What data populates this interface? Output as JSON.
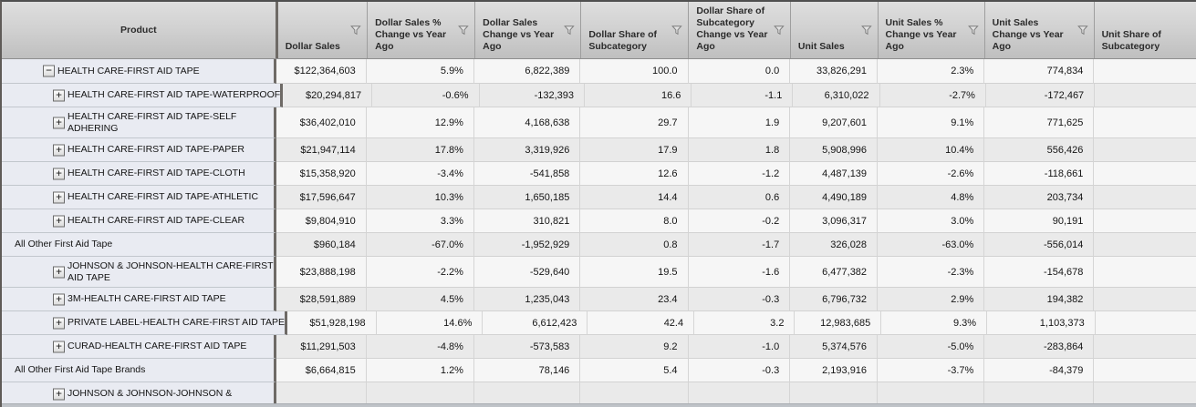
{
  "grid": {
    "columns": [
      {
        "key": "product",
        "label": "Product",
        "has_filter": false
      },
      {
        "key": "dollar_sales",
        "label": "Dollar Sales",
        "has_filter": true
      },
      {
        "key": "dollar_sales_pct_change",
        "label": "Dollar Sales % Change vs Year Ago",
        "has_filter": true
      },
      {
        "key": "dollar_sales_change",
        "label": "Dollar Sales Change vs Year Ago",
        "has_filter": true
      },
      {
        "key": "dollar_share",
        "label": "Dollar Share of Subcategory",
        "has_filter": true
      },
      {
        "key": "dollar_share_change",
        "label": "Dollar Share of Subcategory Change vs Year Ago",
        "has_filter": true
      },
      {
        "key": "unit_sales",
        "label": "Unit Sales",
        "has_filter": true
      },
      {
        "key": "unit_sales_pct_change",
        "label": "Unit Sales % Change vs Year Ago",
        "has_filter": true
      },
      {
        "key": "unit_sales_change",
        "label": "Unit Sales Change vs Year Ago",
        "has_filter": true
      },
      {
        "key": "unit_share",
        "label": "Unit Share of Subcategory",
        "has_filter": false
      }
    ],
    "rows": [
      {
        "product": {
          "label": "HEALTH CARE-FIRST AID TAPE",
          "expander": "minus",
          "indent": 1
        },
        "cells": [
          "$122,364,603",
          "5.9%",
          "6,822,389",
          "100.0",
          "0.0",
          "33,826,291",
          "2.3%",
          "774,834",
          ""
        ]
      },
      {
        "product": {
          "label": "HEALTH CARE-FIRST AID TAPE-WATERPROOF",
          "expander": "plus",
          "indent": 2
        },
        "cells": [
          "$20,294,817",
          "-0.6%",
          "-132,393",
          "16.6",
          "-1.1",
          "6,310,022",
          "-2.7%",
          "-172,467",
          ""
        ]
      },
      {
        "product": {
          "label": "HEALTH CARE-FIRST AID TAPE-SELF\nADHERING",
          "expander": "plus",
          "indent": 2
        },
        "cells": [
          "$36,402,010",
          "12.9%",
          "4,168,638",
          "29.7",
          "1.9",
          "9,207,601",
          "9.1%",
          "771,625",
          ""
        ]
      },
      {
        "product": {
          "label": "HEALTH CARE-FIRST AID TAPE-PAPER",
          "expander": "plus",
          "indent": 2
        },
        "cells": [
          "$21,947,114",
          "17.8%",
          "3,319,926",
          "17.9",
          "1.8",
          "5,908,996",
          "10.4%",
          "556,426",
          ""
        ]
      },
      {
        "product": {
          "label": "HEALTH CARE-FIRST AID TAPE-CLOTH",
          "expander": "plus",
          "indent": 2
        },
        "cells": [
          "$15,358,920",
          "-3.4%",
          "-541,858",
          "12.6",
          "-1.2",
          "4,487,139",
          "-2.6%",
          "-118,661",
          ""
        ]
      },
      {
        "product": {
          "label": "HEALTH CARE-FIRST AID TAPE-ATHLETIC",
          "expander": "plus",
          "indent": 2
        },
        "cells": [
          "$17,596,647",
          "10.3%",
          "1,650,185",
          "14.4",
          "0.6",
          "4,490,189",
          "4.8%",
          "203,734",
          ""
        ]
      },
      {
        "product": {
          "label": "HEALTH CARE-FIRST AID TAPE-CLEAR",
          "expander": "plus",
          "indent": 2
        },
        "cells": [
          "$9,804,910",
          "3.3%",
          "310,821",
          "8.0",
          "-0.2",
          "3,096,317",
          "3.0%",
          "90,191",
          ""
        ]
      },
      {
        "product": {
          "label": "All Other First Aid Tape",
          "expander": null,
          "indent": 0
        },
        "cells": [
          "$960,184",
          "-67.0%",
          "-1,952,929",
          "0.8",
          "-1.7",
          "326,028",
          "-63.0%",
          "-556,014",
          ""
        ]
      },
      {
        "product": {
          "label": "JOHNSON & JOHNSON-HEALTH CARE-FIRST\nAID TAPE",
          "expander": "plus",
          "indent": 2
        },
        "cells": [
          "$23,888,198",
          "-2.2%",
          "-529,640",
          "19.5",
          "-1.6",
          "6,477,382",
          "-2.3%",
          "-154,678",
          ""
        ]
      },
      {
        "product": {
          "label": "3M-HEALTH CARE-FIRST AID TAPE",
          "expander": "plus",
          "indent": 2
        },
        "cells": [
          "$28,591,889",
          "4.5%",
          "1,235,043",
          "23.4",
          "-0.3",
          "6,796,732",
          "2.9%",
          "194,382",
          ""
        ]
      },
      {
        "product": {
          "label": "PRIVATE LABEL-HEALTH CARE-FIRST AID TAPE",
          "expander": "plus",
          "indent": 2
        },
        "cells": [
          "$51,928,198",
          "14.6%",
          "6,612,423",
          "42.4",
          "3.2",
          "12,983,685",
          "9.3%",
          "1,103,373",
          ""
        ]
      },
      {
        "product": {
          "label": "CURAD-HEALTH CARE-FIRST AID TAPE",
          "expander": "plus",
          "indent": 2
        },
        "cells": [
          "$11,291,503",
          "-4.8%",
          "-573,583",
          "9.2",
          "-1.0",
          "5,374,576",
          "-5.0%",
          "-283,864",
          ""
        ]
      },
      {
        "product": {
          "label": "All Other First Aid Tape Brands",
          "expander": null,
          "indent": 0
        },
        "cells": [
          "$6,664,815",
          "1.2%",
          "78,146",
          "5.4",
          "-0.3",
          "2,193,916",
          "-3.7%",
          "-84,379",
          ""
        ]
      },
      {
        "product": {
          "label": "JOHNSON & JOHNSON-JOHNSON &",
          "expander": "plus",
          "indent": 2
        },
        "cells": [
          "",
          "",
          "",
          "",
          "",
          "",
          "",
          "",
          ""
        ]
      }
    ],
    "icons": {
      "filter": "filter-funnel-icon",
      "collapse": "minus",
      "expand": "plus"
    },
    "colors": {
      "product_column_bg": "#e9ebf2",
      "row_odd_bg": "#f6f6f6",
      "row_even_bg": "#eaeaea",
      "header_gradient_top": "#dedede",
      "header_gradient_bottom": "#bfbfbf",
      "frozen_pane_separator": "#6e6a66"
    }
  }
}
